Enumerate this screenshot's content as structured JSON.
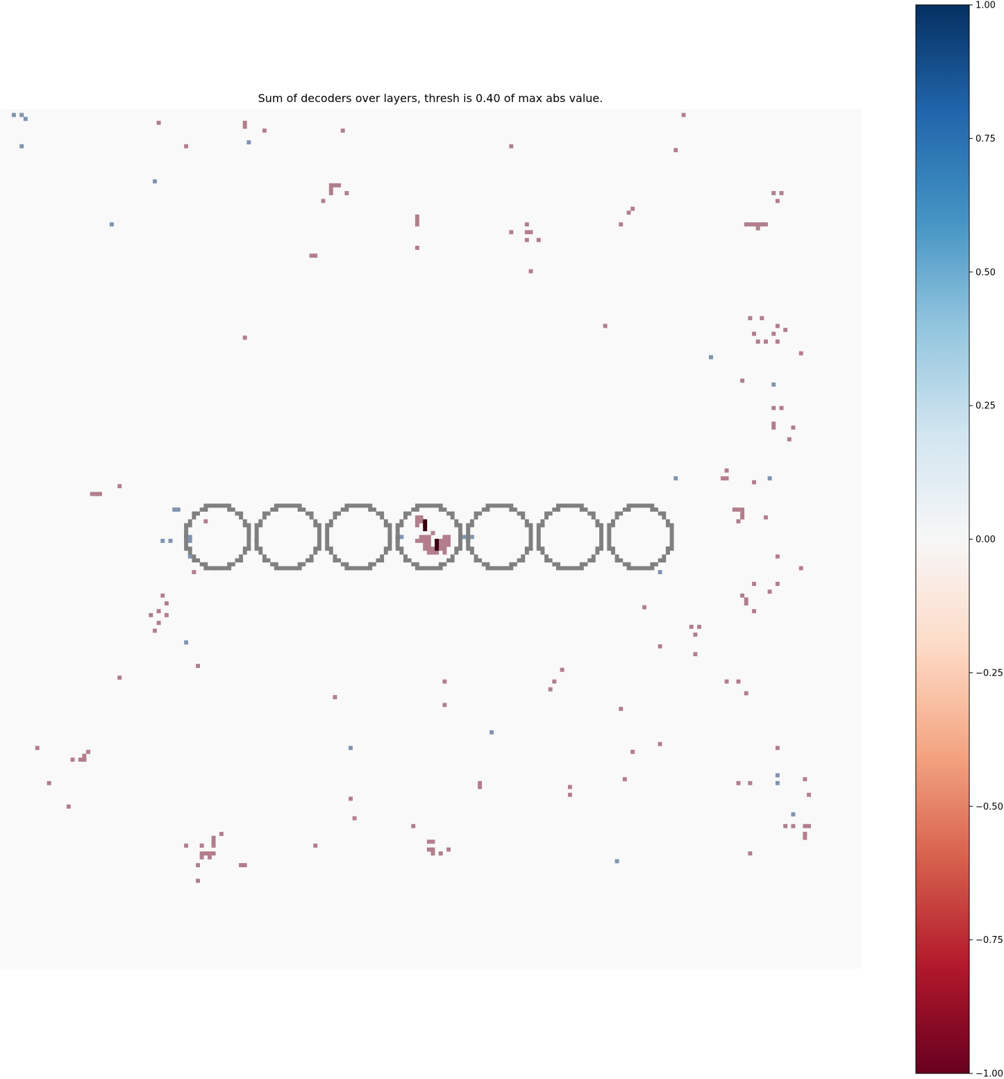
{
  "chart_data": {
    "type": "heatmap",
    "title": "Sum of decoders over layers, thresh is 0.40 of max abs value.",
    "colormap": "RdBu",
    "vmin": -1.0,
    "vmax": 1.0,
    "colorbar": {
      "location": "right",
      "ticks": [
        1.0,
        0.75,
        0.5,
        0.25,
        0.0,
        -0.25,
        -0.5,
        -0.75,
        -1.0
      ],
      "tick_labels": [
        "1.00",
        "0.75",
        "0.50",
        "0.25",
        "0.00",
        "−0.25",
        "−0.50",
        "−0.75",
        "−1.00"
      ]
    },
    "axes": "off",
    "grid": false,
    "background_color": "#f9f9f9",
    "grid_size": [
      220,
      220
    ],
    "overlay_shape": "circle",
    "overlay_color": "#808080",
    "overlay_circles": [
      {
        "col": 55,
        "row": 109,
        "radius": 8
      },
      {
        "col": 73,
        "row": 109,
        "radius": 8
      },
      {
        "col": 91,
        "row": 109,
        "radius": 8
      },
      {
        "col": 109,
        "row": 109,
        "radius": 8
      },
      {
        "col": 127,
        "row": 109,
        "radius": 8
      },
      {
        "col": 145,
        "row": 109,
        "radius": 8
      },
      {
        "col": 163,
        "row": 109,
        "radius": 8
      }
    ],
    "negative_cells": [
      [
        174,
        1
      ],
      [
        62,
        3
      ],
      [
        62,
        4
      ],
      [
        40,
        3
      ],
      [
        67,
        5
      ],
      [
        87,
        5
      ],
      [
        47,
        9
      ],
      [
        130,
        9
      ],
      [
        172,
        10
      ],
      [
        84,
        19
      ],
      [
        85,
        19
      ],
      [
        86,
        19
      ],
      [
        84,
        20
      ],
      [
        84,
        21
      ],
      [
        88,
        21
      ],
      [
        82,
        23
      ],
      [
        197,
        21
      ],
      [
        199,
        21
      ],
      [
        198,
        23
      ],
      [
        161,
        25
      ],
      [
        160,
        26
      ],
      [
        158,
        29
      ],
      [
        106,
        27
      ],
      [
        106,
        28
      ],
      [
        106,
        29
      ],
      [
        134,
        29
      ],
      [
        130,
        31
      ],
      [
        134,
        31
      ],
      [
        135,
        31
      ],
      [
        134,
        33
      ],
      [
        137,
        33
      ],
      [
        190,
        29
      ],
      [
        191,
        29
      ],
      [
        192,
        29
      ],
      [
        193,
        29
      ],
      [
        194,
        29
      ],
      [
        195,
        29
      ],
      [
        193,
        30
      ],
      [
        106,
        35
      ],
      [
        79,
        37
      ],
      [
        80,
        37
      ],
      [
        135,
        41
      ],
      [
        62,
        58
      ],
      [
        154,
        55
      ],
      [
        191,
        53
      ],
      [
        194,
        53
      ],
      [
        198,
        55
      ],
      [
        200,
        56
      ],
      [
        192,
        57
      ],
      [
        197,
        57
      ],
      [
        193,
        59
      ],
      [
        195,
        59
      ],
      [
        198,
        59
      ],
      [
        204,
        62
      ],
      [
        189,
        69
      ],
      [
        197,
        76
      ],
      [
        199,
        76
      ],
      [
        197,
        80
      ],
      [
        197,
        81
      ],
      [
        202,
        81
      ],
      [
        201,
        84
      ],
      [
        185,
        92
      ],
      [
        184,
        94
      ],
      [
        185,
        94
      ],
      [
        192,
        95
      ],
      [
        23,
        98
      ],
      [
        24,
        98
      ],
      [
        25,
        98
      ],
      [
        30,
        96
      ],
      [
        187,
        102
      ],
      [
        188,
        102
      ],
      [
        189,
        102
      ],
      [
        189,
        103
      ],
      [
        189,
        104
      ],
      [
        188,
        105
      ],
      [
        195,
        104
      ],
      [
        52,
        102
      ],
      [
        106,
        104
      ],
      [
        107,
        104
      ],
      [
        106,
        105
      ],
      [
        107,
        105
      ],
      [
        106,
        106
      ],
      [
        108,
        106
      ],
      [
        110,
        108
      ],
      [
        107,
        109
      ],
      [
        108,
        109
      ],
      [
        109,
        109
      ],
      [
        113,
        109
      ],
      [
        114,
        109
      ],
      [
        106,
        110
      ],
      [
        107,
        110
      ],
      [
        108,
        110
      ],
      [
        109,
        110
      ],
      [
        111,
        110
      ],
      [
        112,
        110
      ],
      [
        113,
        110
      ],
      [
        114,
        110
      ],
      [
        108,
        111
      ],
      [
        109,
        111
      ],
      [
        112,
        111
      ],
      [
        113,
        111
      ],
      [
        114,
        111
      ],
      [
        108,
        112
      ],
      [
        109,
        112
      ],
      [
        110,
        112
      ],
      [
        111,
        112
      ],
      [
        112,
        112
      ],
      [
        113,
        112
      ],
      [
        109,
        113
      ],
      [
        110,
        113
      ],
      [
        111,
        113
      ],
      [
        198,
        114
      ],
      [
        49,
        118
      ],
      [
        204,
        117
      ],
      [
        192,
        121
      ],
      [
        198,
        121
      ],
      [
        196,
        123
      ],
      [
        189,
        124
      ],
      [
        190,
        125
      ],
      [
        190,
        126
      ],
      [
        41,
        124
      ],
      [
        42,
        126
      ],
      [
        40,
        128
      ],
      [
        38,
        129
      ],
      [
        42,
        129
      ],
      [
        40,
        131
      ],
      [
        39,
        133
      ],
      [
        192,
        128
      ],
      [
        164,
        127
      ],
      [
        176,
        132
      ],
      [
        178,
        132
      ],
      [
        177,
        134
      ],
      [
        168,
        137
      ],
      [
        177,
        139
      ],
      [
        50,
        142
      ],
      [
        30,
        145
      ],
      [
        143,
        143
      ],
      [
        141,
        146
      ],
      [
        140,
        148
      ],
      [
        113,
        146
      ],
      [
        113,
        152
      ],
      [
        185,
        146
      ],
      [
        188,
        146
      ],
      [
        190,
        149
      ],
      [
        85,
        150
      ],
      [
        158,
        153
      ],
      [
        9,
        163
      ],
      [
        22,
        164
      ],
      [
        21,
        165
      ],
      [
        18,
        166
      ],
      [
        20,
        166
      ],
      [
        21,
        166
      ],
      [
        168,
        162
      ],
      [
        161,
        164
      ],
      [
        198,
        163
      ],
      [
        12,
        172
      ],
      [
        17,
        178
      ],
      [
        122,
        172
      ],
      [
        122,
        173
      ],
      [
        145,
        173
      ],
      [
        145,
        175
      ],
      [
        159,
        171
      ],
      [
        188,
        172
      ],
      [
        191,
        172
      ],
      [
        205,
        171
      ],
      [
        206,
        175
      ],
      [
        89,
        176
      ],
      [
        90,
        181
      ],
      [
        105,
        183
      ],
      [
        200,
        183
      ],
      [
        202,
        183
      ],
      [
        205,
        183
      ],
      [
        206,
        183
      ],
      [
        205,
        185
      ],
      [
        205,
        186
      ],
      [
        56,
        185
      ],
      [
        47,
        188
      ],
      [
        54,
        186
      ],
      [
        54,
        187
      ],
      [
        51,
        188
      ],
      [
        54,
        188
      ],
      [
        51,
        190
      ],
      [
        52,
        190
      ],
      [
        53,
        190
      ],
      [
        54,
        190
      ],
      [
        51,
        191
      ],
      [
        53,
        191
      ],
      [
        50,
        193
      ],
      [
        61,
        193
      ],
      [
        62,
        193
      ],
      [
        50,
        197
      ],
      [
        80,
        188
      ],
      [
        109,
        187
      ],
      [
        110,
        187
      ],
      [
        109,
        189
      ],
      [
        110,
        189
      ],
      [
        110,
        190
      ],
      [
        112,
        190
      ],
      [
        114,
        189
      ],
      [
        191,
        190
      ],
      [
        52,
        105
      ],
      [
        113,
        113
      ]
    ],
    "dark_negative_cells": [
      [
        108,
        105
      ],
      [
        108,
        106
      ],
      [
        108,
        107
      ],
      [
        111,
        110
      ],
      [
        111,
        111
      ],
      [
        111,
        112
      ]
    ],
    "positive_cells": [
      [
        3,
        1
      ],
      [
        5,
        1
      ],
      [
        6,
        2
      ],
      [
        5,
        9
      ],
      [
        39,
        18
      ],
      [
        28,
        29
      ],
      [
        63,
        8
      ],
      [
        181,
        63
      ],
      [
        197,
        70
      ],
      [
        172,
        94
      ],
      [
        196,
        94
      ],
      [
        44,
        102
      ],
      [
        45,
        102
      ],
      [
        41,
        110
      ],
      [
        43,
        110
      ],
      [
        48,
        110
      ],
      [
        48,
        114
      ],
      [
        54,
        117
      ],
      [
        55,
        117
      ],
      [
        47,
        136
      ],
      [
        170,
        113
      ],
      [
        168,
        118
      ],
      [
        89,
        163
      ],
      [
        125,
        159
      ],
      [
        198,
        170
      ],
      [
        198,
        172
      ],
      [
        202,
        180
      ],
      [
        157,
        192
      ],
      [
        48,
        109
      ],
      [
        102,
        109
      ],
      [
        118,
        109
      ],
      [
        119,
        109
      ],
      [
        120,
        109
      ]
    ],
    "dark_positive_cells": [
      [
        47,
        109
      ],
      [
        65,
        110
      ],
      [
        99,
        109
      ],
      [
        99,
        110
      ],
      [
        101,
        109
      ],
      [
        101,
        110
      ],
      [
        117,
        109
      ],
      [
        117,
        110
      ],
      [
        119,
        110
      ],
      [
        170,
        112
      ]
    ]
  }
}
